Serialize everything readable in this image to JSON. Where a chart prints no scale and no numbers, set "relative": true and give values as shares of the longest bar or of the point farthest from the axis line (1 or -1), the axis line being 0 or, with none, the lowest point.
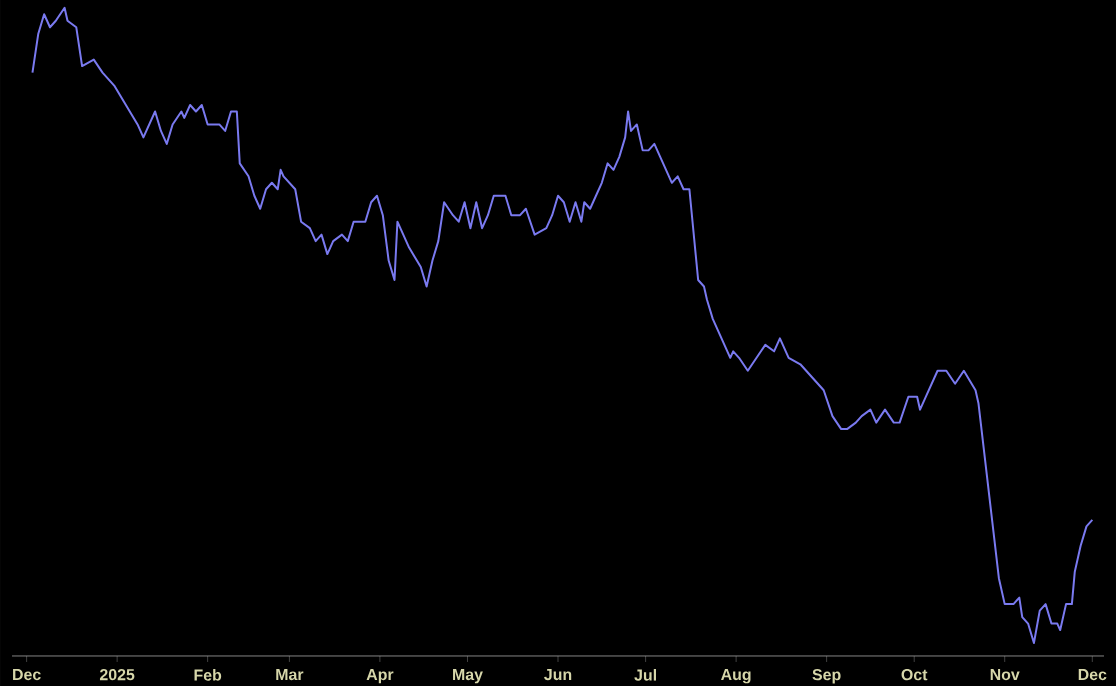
{
  "chart_data": {
    "type": "line",
    "relative": true,
    "color": "#7a7af0",
    "line_style": "solid",
    "xlim": [
      "2024-11-26",
      "2025-12-05"
    ],
    "xticks": [
      {
        "value": "2024-12-01",
        "label": "Dec"
      },
      {
        "value": "2025-01-01",
        "label": "2025"
      },
      {
        "value": "2025-02-01",
        "label": "Feb"
      },
      {
        "value": "2025-03-01",
        "label": "Mar"
      },
      {
        "value": "2025-04-01",
        "label": "Apr"
      },
      {
        "value": "2025-05-01",
        "label": "May"
      },
      {
        "value": "2025-06-01",
        "label": "Jun"
      },
      {
        "value": "2025-07-01",
        "label": "Jul"
      },
      {
        "value": "2025-08-01",
        "label": "Aug"
      },
      {
        "value": "2025-09-01",
        "label": "Sep"
      },
      {
        "value": "2025-10-01",
        "label": "Oct"
      },
      {
        "value": "2025-11-01",
        "label": "Nov"
      },
      {
        "value": "2025-12-01",
        "label": "Dec"
      }
    ],
    "x": [
      "2024-12-03",
      "2024-12-05",
      "2024-12-07",
      "2024-12-09",
      "2024-12-11",
      "2024-12-14",
      "2024-12-15",
      "2024-12-18",
      "2024-12-20",
      "2024-12-24",
      "2024-12-27",
      "2024-12-31",
      "2025-01-04",
      "2025-01-08",
      "2025-01-10",
      "2025-01-14",
      "2025-01-16",
      "2025-01-18",
      "2025-01-20",
      "2025-01-23",
      "2025-01-24",
      "2025-01-26",
      "2025-01-28",
      "2025-01-30",
      "2025-02-01",
      "2025-02-05",
      "2025-02-07",
      "2025-02-09",
      "2025-02-11",
      "2025-02-12",
      "2025-02-15",
      "2025-02-17",
      "2025-02-19",
      "2025-02-21",
      "2025-02-23",
      "2025-02-25",
      "2025-02-26",
      "2025-02-27",
      "2025-03-03",
      "2025-03-05",
      "2025-03-08",
      "2025-03-10",
      "2025-03-12",
      "2025-03-14",
      "2025-03-16",
      "2025-03-19",
      "2025-03-21",
      "2025-03-23",
      "2025-03-27",
      "2025-03-29",
      "2025-03-31",
      "2025-04-02",
      "2025-04-04",
      "2025-04-06",
      "2025-04-07",
      "2025-04-11",
      "2025-04-15",
      "2025-04-17",
      "2025-04-19",
      "2025-04-21",
      "2025-04-23",
      "2025-04-26",
      "2025-04-28",
      "2025-04-30",
      "2025-05-02",
      "2025-05-04",
      "2025-05-06",
      "2025-05-08",
      "2025-05-10",
      "2025-05-14",
      "2025-05-16",
      "2025-05-19",
      "2025-05-21",
      "2025-05-24",
      "2025-05-28",
      "2025-05-30",
      "2025-06-01",
      "2025-06-03",
      "2025-06-05",
      "2025-06-07",
      "2025-06-09",
      "2025-06-10",
      "2025-06-12",
      "2025-06-14",
      "2025-06-16",
      "2025-06-18",
      "2025-06-20",
      "2025-06-22",
      "2025-06-24",
      "2025-06-25",
      "2025-06-26",
      "2025-06-28",
      "2025-06-30",
      "2025-07-02",
      "2025-07-04",
      "2025-07-06",
      "2025-07-08",
      "2025-07-10",
      "2025-07-12",
      "2025-07-14",
      "2025-07-16",
      "2025-07-19",
      "2025-07-21",
      "2025-07-22",
      "2025-07-24",
      "2025-07-27",
      "2025-07-30",
      "2025-07-31",
      "2025-08-02",
      "2025-08-05",
      "2025-08-08",
      "2025-08-11",
      "2025-08-14",
      "2025-08-16",
      "2025-08-19",
      "2025-08-23",
      "2025-08-27",
      "2025-08-31",
      "2025-09-03",
      "2025-09-06",
      "2025-09-08",
      "2025-09-11",
      "2025-09-13",
      "2025-09-16",
      "2025-09-18",
      "2025-09-21",
      "2025-09-24",
      "2025-09-26",
      "2025-09-29",
      "2025-10-02",
      "2025-10-03",
      "2025-10-05",
      "2025-10-09",
      "2025-10-12",
      "2025-10-15",
      "2025-10-18",
      "2025-10-22",
      "2025-10-23",
      "2025-10-30",
      "2025-11-01",
      "2025-11-04",
      "2025-11-06",
      "2025-11-07",
      "2025-11-09",
      "2025-11-11",
      "2025-11-13",
      "2025-11-15",
      "2025-11-17",
      "2025-11-19",
      "2025-11-20",
      "2025-11-22",
      "2025-11-24",
      "2025-11-25",
      "2025-11-27",
      "2025-11-29",
      "2025-12-01"
    ],
    "values": [
      0.9,
      0.96,
      0.99,
      0.97,
      0.98,
      1.0,
      0.98,
      0.97,
      0.91,
      0.92,
      0.9,
      0.88,
      0.85,
      0.82,
      0.8,
      0.84,
      0.81,
      0.79,
      0.82,
      0.84,
      0.83,
      0.85,
      0.84,
      0.85,
      0.82,
      0.82,
      0.81,
      0.84,
      0.84,
      0.76,
      0.74,
      0.71,
      0.69,
      0.72,
      0.73,
      0.72,
      0.75,
      0.74,
      0.72,
      0.67,
      0.66,
      0.64,
      0.65,
      0.62,
      0.64,
      0.65,
      0.64,
      0.67,
      0.67,
      0.7,
      0.71,
      0.68,
      0.61,
      0.58,
      0.67,
      0.63,
      0.6,
      0.57,
      0.61,
      0.64,
      0.7,
      0.68,
      0.67,
      0.7,
      0.66,
      0.7,
      0.66,
      0.68,
      0.71,
      0.71,
      0.68,
      0.68,
      0.69,
      0.65,
      0.66,
      0.68,
      0.71,
      0.7,
      0.67,
      0.7,
      0.67,
      0.7,
      0.69,
      0.71,
      0.73,
      0.76,
      0.75,
      0.77,
      0.8,
      0.84,
      0.81,
      0.82,
      0.78,
      0.78,
      0.79,
      0.77,
      0.75,
      0.73,
      0.74,
      0.72,
      0.72,
      0.58,
      0.57,
      0.55,
      0.52,
      0.49,
      0.46,
      0.47,
      0.46,
      0.44,
      0.46,
      0.48,
      0.47,
      0.49,
      0.46,
      0.45,
      0.43,
      0.41,
      0.37,
      0.35,
      0.35,
      0.36,
      0.37,
      0.38,
      0.36,
      0.38,
      0.36,
      0.36,
      0.4,
      0.4,
      0.38,
      0.4,
      0.44,
      0.44,
      0.42,
      0.44,
      0.41,
      0.39,
      0.12,
      0.08,
      0.08,
      0.09,
      0.06,
      0.05,
      0.02,
      0.07,
      0.08,
      0.05,
      0.05,
      0.04,
      0.08,
      0.08,
      0.13,
      0.17,
      0.2,
      0.21
    ]
  }
}
